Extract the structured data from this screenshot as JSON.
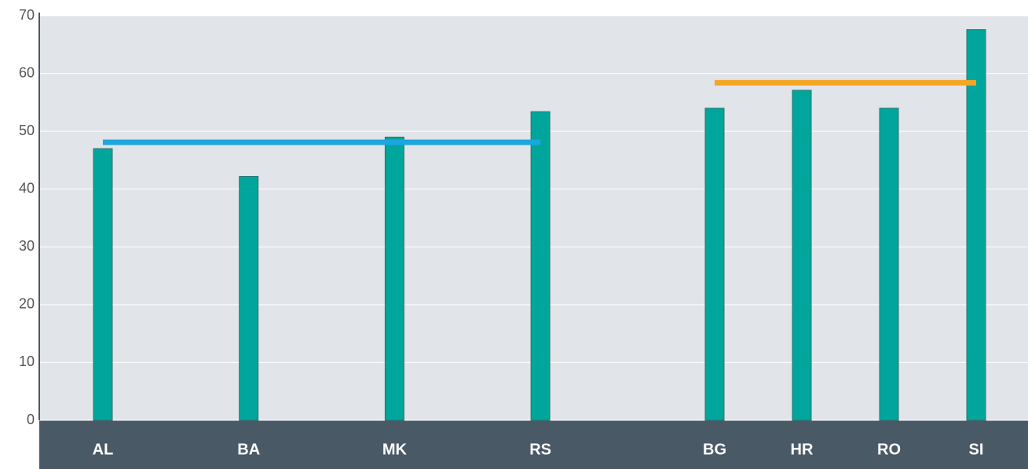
{
  "chart_data": {
    "type": "bar",
    "groups": [
      {
        "categories": [
          "AL",
          "BA",
          "MK",
          "RS"
        ],
        "values": [
          47,
          42.2,
          49,
          53.4
        ],
        "average": 48.1,
        "average_color": "#1ba6de"
      },
      {
        "categories": [
          "BG",
          "HR",
          "RO",
          "SI"
        ],
        "values": [
          54,
          57.1,
          54,
          67.6
        ],
        "average": 58.4,
        "average_color": "#f5a623"
      }
    ],
    "color": "#00a69c",
    "ylim": [
      0,
      70
    ],
    "yticks": [
      0,
      10,
      20,
      30,
      40,
      50,
      60,
      70
    ],
    "grid": true
  }
}
